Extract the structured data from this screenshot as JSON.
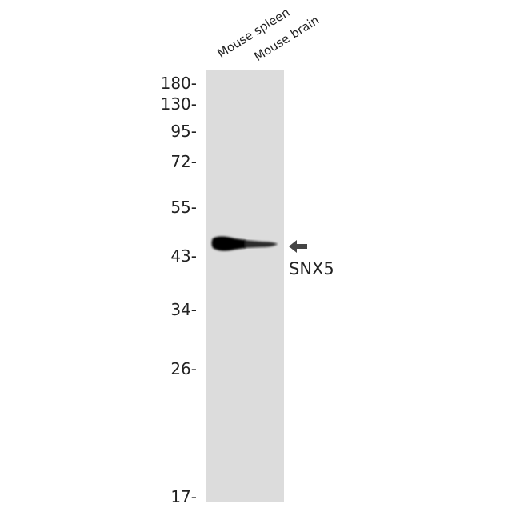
{
  "lanes": [
    "Mouse spleen",
    "Mouse brain"
  ],
  "markers": [
    {
      "label": "180-",
      "kda": 180
    },
    {
      "label": "130-",
      "kda": 130
    },
    {
      "label": "95-",
      "kda": 95
    },
    {
      "label": "72-",
      "kda": 72
    },
    {
      "label": "55-",
      "kda": 55
    },
    {
      "label": "43-",
      "kda": 43
    },
    {
      "label": "34-",
      "kda": 34
    },
    {
      "label": "26-",
      "kda": 26
    },
    {
      "label": "17-",
      "kda": 17
    }
  ],
  "target": {
    "label": "SNX5",
    "arrow_icon": "left-arrow-icon"
  },
  "colors": {
    "membrane": "#dcdcdc",
    "band": "#000000",
    "arrow": "#444444"
  }
}
